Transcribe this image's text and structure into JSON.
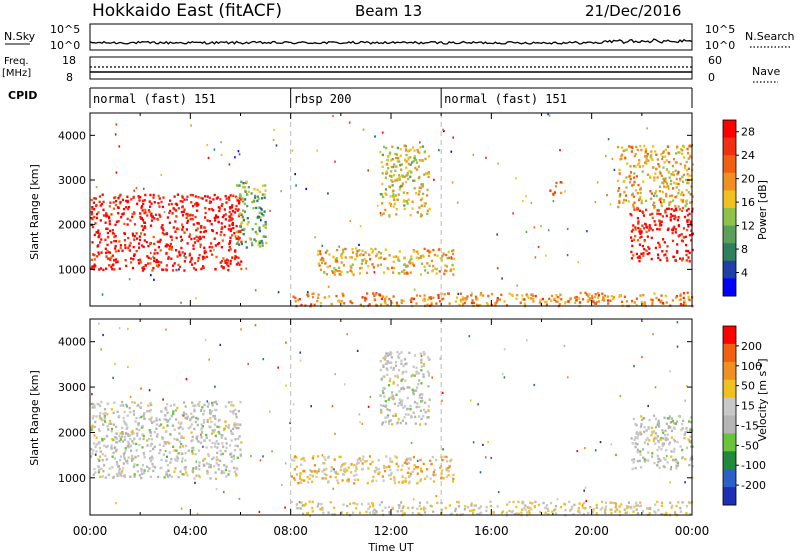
{
  "header": {
    "title": "Hokkaido East (fitACF)",
    "beam": "Beam 13",
    "date": "21/Dec/2016"
  },
  "nsky": {
    "label": "N.Sky",
    "tick_top": "10^5",
    "tick_bottom": "10^0",
    "right_tick_top": "10^5",
    "right_tick_bottom": "10^0",
    "right_label": "N.Search"
  },
  "freq": {
    "label_top": "Freq.",
    "label_unit": "[MHz]",
    "tick_top": "18",
    "tick_bottom": "8",
    "right_tick_top": "60",
    "right_tick_bottom": "0",
    "right_label": "Nave"
  },
  "cpid": {
    "label": "CPID",
    "segments": [
      {
        "label": "normal (fast) 151",
        "start": 0,
        "end": 8
      },
      {
        "label": "rbsp 200",
        "start": 8,
        "end": 14
      },
      {
        "label": "normal (fast) 151",
        "start": 14,
        "end": 24
      }
    ]
  },
  "colors": {
    "power": [
      "#0000ff",
      "#1f40a8",
      "#2f7f5f",
      "#5aa05a",
      "#8fc24a",
      "#f0c020",
      "#f09020",
      "#f06010",
      "#f03010",
      "#ff0000"
    ],
    "velocity": [
      "#1e2fb4",
      "#2a60c8",
      "#1f8a3a",
      "#6ac43a",
      "#b5b5b5",
      "#c8c8c8",
      "#f0c020",
      "#f09020",
      "#f06010",
      "#ff0000"
    ]
  },
  "chart_data": [
    {
      "type": "heatmap",
      "title": "",
      "xlabel": "Time UT",
      "ylabel": "Slant Range [km]",
      "x_range": [
        "00:00",
        "24:00"
      ],
      "xticks": [
        "00:00",
        "04:00",
        "08:00",
        "12:00",
        "16:00",
        "20:00",
        "00:00"
      ],
      "ylim": [
        180,
        4500
      ],
      "yticks": [
        1000,
        2000,
        3000,
        4000
      ],
      "colorbar": {
        "label": "Power [dB]",
        "ticks": [
          "4",
          "8",
          "12",
          "16",
          "20",
          "24",
          "28"
        ],
        "range": [
          0,
          30
        ]
      },
      "regions": [
        {
          "t0": 0.0,
          "t1": 6.0,
          "r0": 1000,
          "r1": 2700,
          "power": 28
        },
        {
          "t0": 5.8,
          "t1": 7.0,
          "r0": 1500,
          "r1": 3000,
          "power": 12
        },
        {
          "t0": 9.0,
          "t1": 14.5,
          "r0": 900,
          "r1": 1500,
          "power": 18
        },
        {
          "t0": 11.5,
          "t1": 13.5,
          "r0": 2200,
          "r1": 3800,
          "power": 16
        },
        {
          "t0": 8.0,
          "t1": 24.0,
          "r0": 200,
          "r1": 500,
          "power": 20
        },
        {
          "t0": 18.3,
          "t1": 18.8,
          "r0": 2700,
          "r1": 3000,
          "power": 22
        },
        {
          "t0": 21.5,
          "t1": 24.0,
          "r0": 1200,
          "r1": 2400,
          "power": 28
        },
        {
          "t0": 21.0,
          "t1": 24.0,
          "r0": 2400,
          "r1": 3800,
          "power": 18
        }
      ]
    },
    {
      "type": "heatmap",
      "title": "",
      "xlabel": "Time UT",
      "ylabel": "Slant Range [km]",
      "x_range": [
        "00:00",
        "24:00"
      ],
      "xticks": [
        "00:00",
        "04:00",
        "08:00",
        "12:00",
        "16:00",
        "20:00",
        "00:00"
      ],
      "ylim": [
        180,
        4500
      ],
      "yticks": [
        1000,
        2000,
        3000,
        4000
      ],
      "colorbar": {
        "label": "Velocity [m s^-1]",
        "ticks": [
          "200",
          "100",
          "50",
          "15",
          "-15",
          "-50",
          "-100",
          "-200"
        ],
        "range": [
          -250,
          250
        ]
      },
      "regions": [
        {
          "t0": 0.0,
          "t1": 6.0,
          "r0": 1000,
          "r1": 2700,
          "velocity": 0
        },
        {
          "t0": 8.0,
          "t1": 14.5,
          "r0": 900,
          "r1": 1500,
          "velocity": 60
        },
        {
          "t0": 8.0,
          "t1": 24.0,
          "r0": 200,
          "r1": 500,
          "velocity": 40
        },
        {
          "t0": 11.5,
          "t1": 13.5,
          "r0": 2200,
          "r1": 3800,
          "velocity": 0
        },
        {
          "t0": 21.5,
          "t1": 24.0,
          "r0": 1200,
          "r1": 2400,
          "velocity": 0
        }
      ]
    }
  ]
}
